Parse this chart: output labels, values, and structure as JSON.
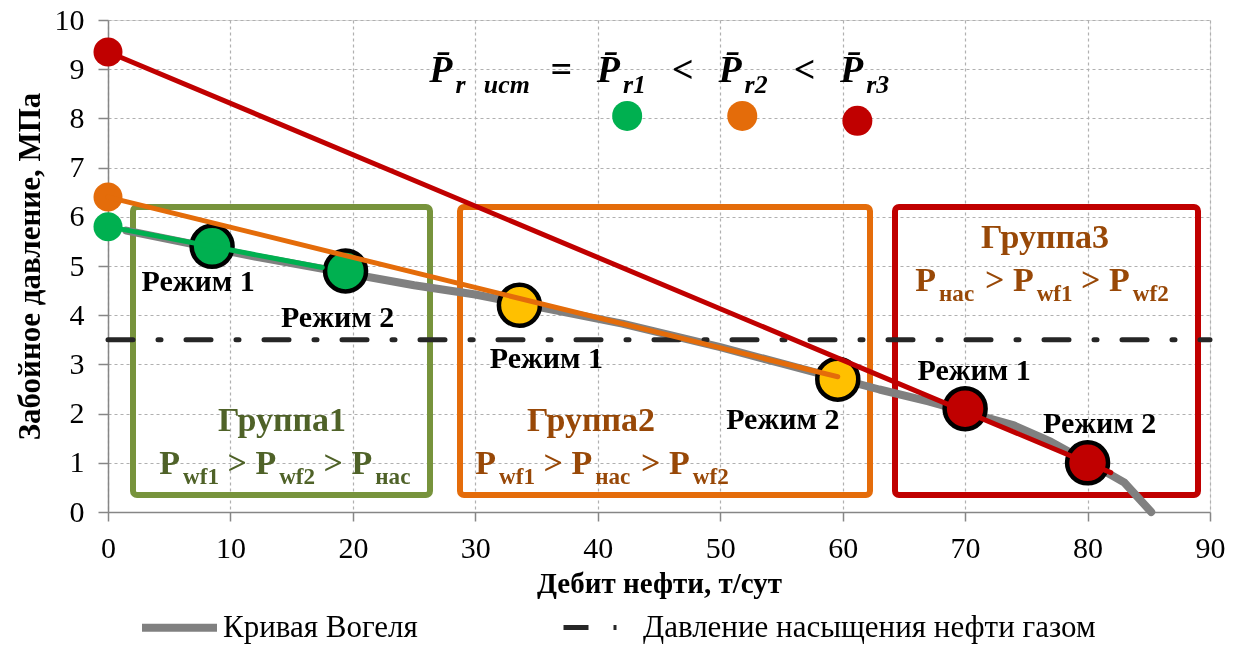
{
  "chart_data": {
    "type": "line",
    "xlabel": "Дебит нефти, т/сут",
    "ylabel": "Забойное давление, МПа",
    "xlim": [
      0,
      90
    ],
    "ylim": [
      0,
      10
    ],
    "xticks": [
      0,
      10,
      20,
      30,
      40,
      50,
      60,
      70,
      80,
      90
    ],
    "yticks": [
      0,
      1,
      2,
      3,
      4,
      5,
      6,
      7,
      8,
      9,
      10
    ],
    "grid": true,
    "legend": "bottom",
    "series": [
      {
        "name": "Кривая Вогеля",
        "type": "line",
        "color": "#808080",
        "x": [
          1.5,
          12,
          25,
          30,
          42,
          50,
          55,
          63,
          67,
          74,
          77,
          82,
          83,
          85.2
        ],
        "values": [
          5.72,
          5.19,
          4.61,
          4.42,
          3.83,
          3.35,
          3.02,
          2.49,
          2.25,
          1.76,
          1.43,
          0.74,
          0.6,
          0
        ]
      },
      {
        "name": "Давление насыщения нефти газом",
        "type": "line",
        "color": "#262626",
        "line_style": "dashdot",
        "x": [
          0,
          90
        ],
        "values": [
          3.5,
          3.5
        ]
      },
      {
        "type": "line",
        "color": "#00b050",
        "x": [
          0,
          17.5
        ],
        "values": [
          5.8,
          4.97
        ]
      },
      {
        "type": "line",
        "color": "#e46c0a",
        "x": [
          0,
          59.6
        ],
        "values": [
          6.4,
          2.75
        ]
      },
      {
        "type": "line",
        "color": "#c00000",
        "x": [
          0,
          81.9
        ],
        "values": [
          9.35,
          0.8
        ]
      },
      {
        "type": "scatter",
        "marker": "circle",
        "colors": [
          "#00b050",
          "#e46c0a",
          "#c00000"
        ],
        "x": [
          0,
          0,
          0
        ],
        "values": [
          5.8,
          6.4,
          9.35
        ]
      },
      {
        "type": "scatter",
        "marker": "circle",
        "colors": [
          "#00b050",
          "#00b050",
          "#ffc000",
          "#ffc000",
          "#c00000",
          "#c00000"
        ],
        "x": [
          8.5,
          19.4,
          33.6,
          59.6,
          70,
          80
        ],
        "values": [
          5.4,
          4.9,
          4.2,
          2.7,
          2.1,
          1.0
        ]
      },
      {
        "type": "scatter",
        "marker": "circle",
        "colors": [
          "#00b050",
          "#e46c0a",
          "#c00000"
        ],
        "x": [
          42.4,
          51.8,
          61.2
        ],
        "values": [
          8.05,
          8.05,
          7.95
        ]
      }
    ],
    "annotations": [
      "P̄$_{r ист}$ = P̄$_{r1}$ < P̄$_{r2}$ < P̄$_{r3}$",
      "Группа1",
      "P$_{wf1}$ > P$_{wf2}$ > P$_{нас}$",
      "Группа2",
      "P$_{wf1}$ > P$_{нас}$ > P$_{wf2}$",
      "Группа3",
      "P$_{нас}$ > P$_{wf1}$ > P$_{wf2}$",
      {
        "text": "Режим 1",
        "x": 8.5,
        "y": 5.4
      },
      {
        "text": "Режим 2",
        "x": 19.4,
        "y": 4.9
      },
      {
        "text": "Режим 1",
        "x": 33.6,
        "y": 4.2
      },
      {
        "text": "Режим 2",
        "x": 59.6,
        "y": 2.7
      },
      {
        "text": "Режим 1",
        "x": 70,
        "y": 2.1
      },
      {
        "text": "Режим 2",
        "x": 80,
        "y": 1.0
      }
    ]
  }
}
